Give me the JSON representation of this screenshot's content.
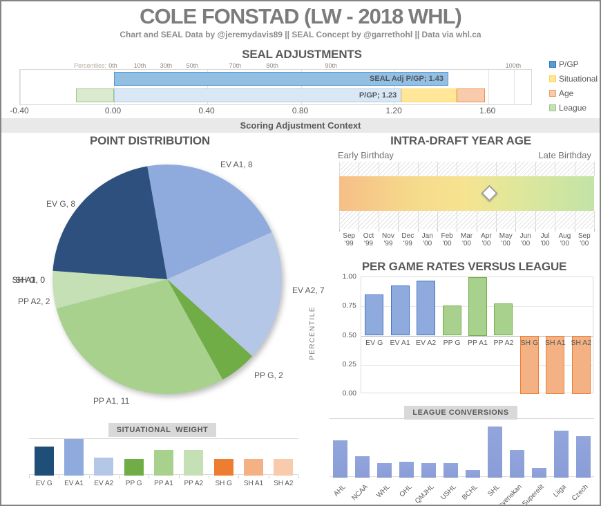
{
  "page": {
    "title": "COLE FONSTAD (LW - 2018 WHL)",
    "subtitle": "Chart and SEAL Data by @jeremydavis89 || SEAL Concept by @garrethohl || Data via whl.ca",
    "context_banner": "Scoring Adjustment Context"
  },
  "chart_data": [
    {
      "id": "seal_adjustments",
      "type": "bar",
      "orientation": "horizontal",
      "title": "SEAL ADJUSTMENTS",
      "axis": {
        "min": -0.4,
        "max": 1.79,
        "ticks": [
          -0.4,
          0.0,
          0.4,
          0.8,
          1.2,
          1.6
        ],
        "tick_labels": [
          "-0.40",
          "0.00",
          "0.40",
          "0.80",
          "1.20",
          "1.60"
        ],
        "grid_values": [
          -0.4,
          0.0,
          0.4,
          0.8,
          1.2,
          1.6,
          1.71
        ]
      },
      "percentile_axis": {
        "label": "Percentiles:",
        "marks": [
          {
            "label": "0th",
            "value": 0.0
          },
          {
            "label": "10th",
            "value": 0.115
          },
          {
            "label": "30th",
            "value": 0.227
          },
          {
            "label": "50th",
            "value": 0.339
          },
          {
            "label": "70th",
            "value": 0.522
          },
          {
            "label": "80th",
            "value": 0.681
          },
          {
            "label": "90th",
            "value": 0.932
          },
          {
            "label": "100th",
            "value": 1.71
          }
        ]
      },
      "rows": [
        {
          "name": "seal-adjusted",
          "segments": [
            {
              "series": "P/GP",
              "label": "SEAL Adj P/GP; 1.43",
              "from": 0.0,
              "to": 1.43,
              "fill": "#93BFE3",
              "border": "#5095CE"
            }
          ]
        },
        {
          "name": "pgp-breakdown",
          "segments": [
            {
              "series": "League",
              "from": -0.16,
              "to": 0.0,
              "fill": "#DBE9CE",
              "border": "#9CC789"
            },
            {
              "series": "P/GP",
              "label": "P/GP; 1.23",
              "from": 0.0,
              "to": 1.23,
              "fill": "#DAE7F4",
              "border": "#A9C8E4"
            },
            {
              "series": "Situational",
              "from": 1.23,
              "to": 1.465,
              "fill": "#FFE699",
              "border": "#FFD966"
            },
            {
              "series": "Age",
              "from": 1.465,
              "to": 1.585,
              "fill": "#F8CBAD",
              "border": "#ED8F4D"
            }
          ]
        }
      ],
      "legend": [
        {
          "label": "P/GP",
          "fill": "#5B9BD5",
          "border": "#2E75B6"
        },
        {
          "label": "Situational",
          "fill": "#FFE699",
          "border": "#FFD34D"
        },
        {
          "label": "Age",
          "fill": "#F8CBAD",
          "border": "#ED9B68"
        },
        {
          "label": "League",
          "fill": "#C6E0B4",
          "border": "#9CC789"
        }
      ]
    },
    {
      "id": "point_distribution",
      "type": "pie",
      "title": "POINT DISTRIBUTION",
      "start_angle_deg": -10,
      "slices": [
        {
          "label": "EV A1",
          "value": 8,
          "fill": "#8FAADC"
        },
        {
          "label": "EV A2",
          "value": 7,
          "fill": "#B4C7E7"
        },
        {
          "label": "PP G",
          "value": 2,
          "fill": "#70AD47"
        },
        {
          "label": "PP A1",
          "value": 11,
          "fill": "#A9D18E"
        },
        {
          "label": "PP A2",
          "value": 2,
          "fill": "#C5E0B4"
        },
        {
          "label": "SH G",
          "value": 0,
          "fill": "#ED7D31"
        },
        {
          "label": "SH A1",
          "value": 0,
          "fill": "#F4B183"
        },
        {
          "label": "SH A2",
          "value": 0,
          "fill": "#F8CBAD"
        },
        {
          "label": "EV G",
          "value": 8,
          "fill": "#2D507F"
        }
      ]
    },
    {
      "id": "intra_draft_age",
      "type": "other",
      "title": "INTRA-DRAFT YEAR AGE",
      "left_label": "Early Birthday",
      "right_label": "Late Birthday",
      "marker_fraction": 0.591,
      "months": [
        {
          "m": "Sep",
          "y": "'99"
        },
        {
          "m": "Oct",
          "y": "'99"
        },
        {
          "m": "Nov",
          "y": "'99"
        },
        {
          "m": "Dec",
          "y": "'99"
        },
        {
          "m": "Jan",
          "y": "'00"
        },
        {
          "m": "Feb",
          "y": "'00"
        },
        {
          "m": "Mar",
          "y": "'00"
        },
        {
          "m": "Apr",
          "y": "'00"
        },
        {
          "m": "May",
          "y": "'00"
        },
        {
          "m": "Jun",
          "y": "'00"
        },
        {
          "m": "Jul",
          "y": "'00"
        },
        {
          "m": "Aug",
          "y": "'00"
        },
        {
          "m": "Sep",
          "y": "'00"
        }
      ]
    },
    {
      "id": "per_game_rates",
      "type": "bar",
      "title": "PER GAME RATES VERSUS LEAGUE",
      "ylabel": "PERCENTILE",
      "ylim": [
        0,
        1
      ],
      "yticks": [
        {
          "label": "1.00",
          "value": 1.0
        },
        {
          "label": "0.75",
          "value": 0.75
        },
        {
          "label": "0.50",
          "value": 0.5
        },
        {
          "label": "0.25",
          "value": 0.25
        },
        {
          "label": "0.00",
          "value": 0.0
        }
      ],
      "baseline": 0.5,
      "categories": [
        "EV G",
        "EV A1",
        "EV A2",
        "PP G",
        "PP A1",
        "PP A2",
        "SH G",
        "SH A1",
        "SH A2"
      ],
      "values": [
        0.85,
        0.93,
        0.97,
        0.76,
        1.0,
        0.775,
        0.0,
        0.0,
        0.0
      ],
      "group_colors": {
        "EV": {
          "fill": "#8FAADC",
          "border": "#4472C4"
        },
        "PP": {
          "fill": "#A9D18E",
          "border": "#70AD47"
        },
        "SH": {
          "fill": "#F4B183",
          "border": "#ED7D31"
        }
      }
    },
    {
      "id": "situational_weight",
      "type": "bar",
      "title": "SITUATIONAL  WEIGHT",
      "categories": [
        "EV G",
        "EV A1",
        "EV A2",
        "PP G",
        "PP A1",
        "PP A2",
        "SH G",
        "SH A1",
        "SH A2"
      ],
      "values": [
        0.8,
        1.0,
        0.5,
        0.45,
        0.69,
        0.7,
        0.45,
        0.45,
        0.46
      ],
      "colors": [
        "#1F4E79",
        "#8FAADC",
        "#B4C7E7",
        "#70AD47",
        "#A9D18E",
        "#C5E0B4",
        "#ED7D31",
        "#F4B183",
        "#F8CBAD"
      ]
    },
    {
      "id": "league_conversions",
      "type": "bar",
      "title": "LEAGUE CONVERSIONS",
      "categories": [
        "AHL",
        "NCAA",
        "WHL",
        "OHL",
        "QMJHL",
        "USHL",
        "BCHL",
        "SHL",
        "Allsvenskan",
        "Superelit",
        "Liiga",
        "Czech"
      ],
      "values": [
        0.64,
        0.36,
        0.25,
        0.27,
        0.25,
        0.25,
        0.13,
        0.87,
        0.47,
        0.165,
        0.8,
        0.71
      ],
      "fill": "#92A5DD"
    }
  ]
}
